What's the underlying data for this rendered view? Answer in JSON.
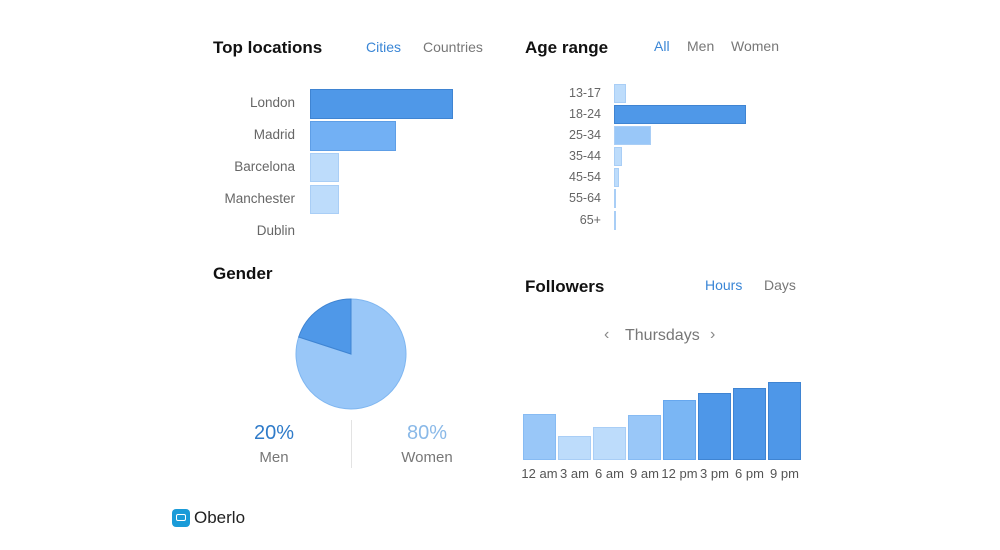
{
  "top_locations": {
    "title": "Top locations",
    "tabs": [
      {
        "label": "Cities",
        "active": true
      },
      {
        "label": "Countries",
        "active": false
      }
    ],
    "rows": [
      {
        "label": "London",
        "value": 100
      },
      {
        "label": "Madrid",
        "value": 60
      },
      {
        "label": "Barcelona",
        "value": 20
      },
      {
        "label": "Manchester",
        "value": 20
      },
      {
        "label": "Dublin",
        "value": 0
      }
    ]
  },
  "age_range": {
    "title": "Age range",
    "tabs": [
      {
        "label": "All",
        "active": true
      },
      {
        "label": "Men",
        "active": false
      },
      {
        "label": "Women",
        "active": false
      }
    ],
    "rows": [
      {
        "label": "13-17",
        "value": 9
      },
      {
        "label": "18-24",
        "value": 100
      },
      {
        "label": "25-34",
        "value": 28
      },
      {
        "label": "35-44",
        "value": 6
      },
      {
        "label": "45-54",
        "value": 4
      },
      {
        "label": "55-64",
        "value": 1
      },
      {
        "label": "65+",
        "value": 1
      }
    ]
  },
  "gender": {
    "title": "Gender",
    "men": {
      "value": "20%",
      "label": "Men",
      "color": "#2f7bc9"
    },
    "women": {
      "value": "80%",
      "label": "Women",
      "color": "#8ab9e8"
    },
    "pie": [
      {
        "name": "Men",
        "percent": 20,
        "color": "#4f98e8"
      },
      {
        "name": "Women",
        "percent": 80,
        "color": "#99c7f8"
      }
    ]
  },
  "followers": {
    "title": "Followers",
    "tabs": [
      {
        "label": "Hours",
        "active": true
      },
      {
        "label": "Days",
        "active": false
      }
    ],
    "day": "Thursdays",
    "prev_icon": "‹",
    "next_icon": "›",
    "chart_data": {
      "type": "bar",
      "categories": [
        "12 am",
        "3 am",
        "6 am",
        "9 am",
        "12 pm",
        "3 pm",
        "6 pm",
        "9 pm"
      ],
      "values": [
        57,
        30,
        41,
        56,
        75,
        84,
        90,
        98
      ],
      "ylim": [
        0,
        100
      ]
    }
  },
  "brand": {
    "name": "Oberlo",
    "color": "#1a9bd8"
  },
  "colors": {
    "accent": "#3a86d6",
    "bar_dark": "#4f98e8",
    "bar_mid": "#72b0f4",
    "bar_light": "#bddcfb"
  }
}
